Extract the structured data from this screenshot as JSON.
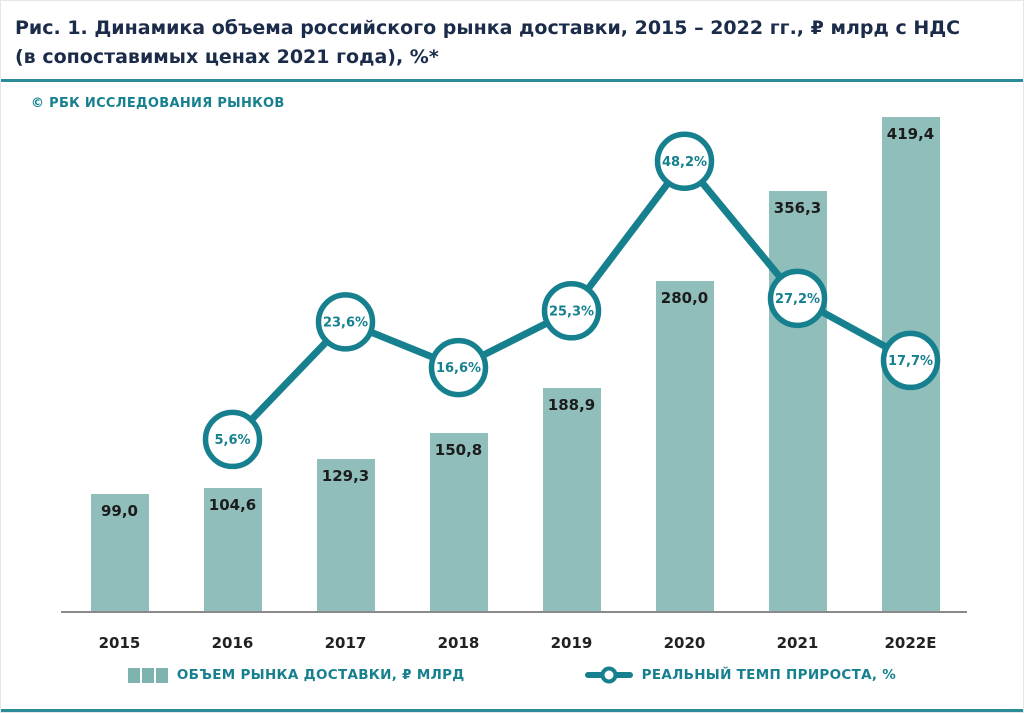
{
  "figure": {
    "title_line1": "Рис. 1. Динамика объема российского рынка доставки, 2015 – 2022 гг., ₽ млрд с НДС",
    "title_line2": "(в сопоставимых ценах 2021 года), %*",
    "source": "© РБК ИССЛЕДОВАНИЯ РЫНКОВ"
  },
  "legend": {
    "bars_label": "ОБЪЕМ РЫНКА ДОСТАВКИ, ₽ МЛРД",
    "line_label": "РЕАЛЬНЫЙ ТЕМП ПРИРОСТА, %"
  },
  "colors": {
    "bar": "#8fbebb",
    "line": "#16808e",
    "title": "#1b2b4a",
    "legend_text": "#16808e",
    "axis": "#8a8a8a",
    "value_label": "#1c1c1c",
    "rule": "#2b8b96"
  },
  "chart_data": {
    "type": "bar",
    "subtype": "bar-with-line-overlay",
    "categories": [
      "2015",
      "2016",
      "2017",
      "2018",
      "2019",
      "2020",
      "2021",
      "2022E"
    ],
    "series": [
      {
        "name": "ОБЪЕМ РЫНКА ДОСТАВКИ, ₽ МЛРД",
        "type": "bar",
        "values": [
          99.0,
          104.6,
          129.3,
          150.8,
          188.9,
          280.0,
          356.3,
          419.4
        ]
      },
      {
        "name": "РЕАЛЬНЫЙ ТЕМП ПРИРОСТА, %",
        "type": "line",
        "values": [
          null,
          5.6,
          23.6,
          16.6,
          25.3,
          48.2,
          27.2,
          17.7
        ]
      }
    ],
    "value_labels": [
      "99,0",
      "104,6",
      "129,3",
      "150,8",
      "188,9",
      "280,0",
      "356,3",
      "419,4"
    ],
    "growth_labels": [
      null,
      "5,6%",
      "23,6%",
      "16,6%",
      "25,3%",
      "48,2%",
      "27,2%",
      "17,7%"
    ],
    "title": "Динамика объема российского рынка доставки, 2015 – 2022 гг.",
    "xlabel": "",
    "ylabel": "₽ млрд с НДС (в сопоставимых ценах 2021 года)",
    "ylim_bars": [
      0,
      440
    ],
    "ylim_percent": [
      0,
      55
    ],
    "grid": false,
    "legend_position": "bottom"
  }
}
